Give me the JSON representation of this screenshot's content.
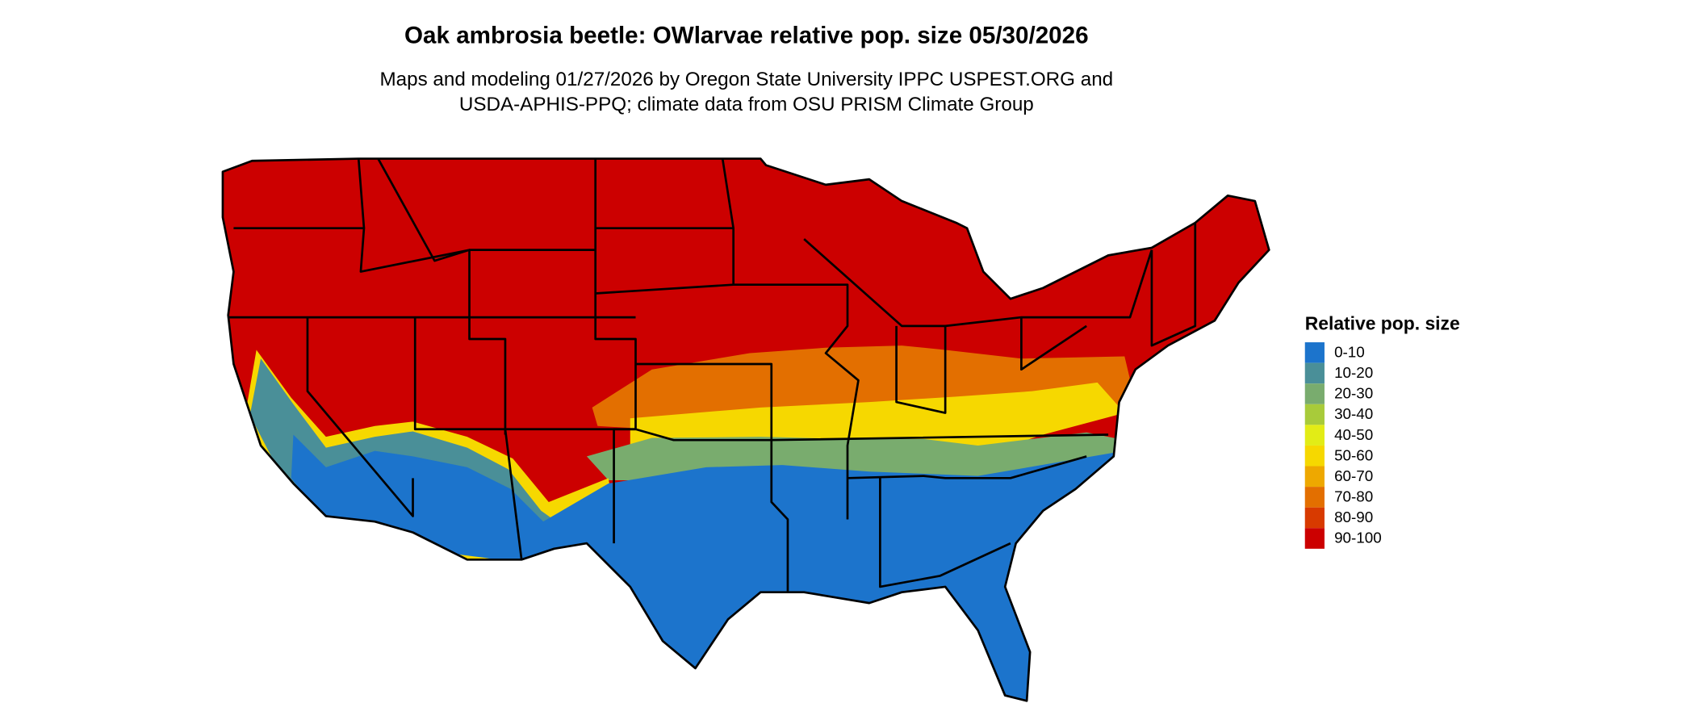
{
  "title": "Oak ambrosia beetle: OWlarvae relative pop. size 05/30/2026",
  "subtitle": [
    "Maps and modeling 01/27/2026 by Oregon State University IPPC USPEST.ORG and",
    "USDA-APHIS-PPQ; climate data from OSU PRISM Climate Group"
  ],
  "legend": {
    "title": "Relative pop. size",
    "items": [
      {
        "label": "0-10",
        "color": "#1c74cc"
      },
      {
        "label": "10-20",
        "color": "#4a8f98"
      },
      {
        "label": "20-30",
        "color": "#79ac6e"
      },
      {
        "label": "30-40",
        "color": "#a8cb3a"
      },
      {
        "label": "40-50",
        "color": "#e2ec16"
      },
      {
        "label": "50-60",
        "color": "#f6d800"
      },
      {
        "label": "60-70",
        "color": "#eea800"
      },
      {
        "label": "70-80",
        "color": "#e36f00"
      },
      {
        "label": "80-90",
        "color": "#d83a00"
      },
      {
        "label": "90-100",
        "color": "#cc0000"
      }
    ]
  }
}
